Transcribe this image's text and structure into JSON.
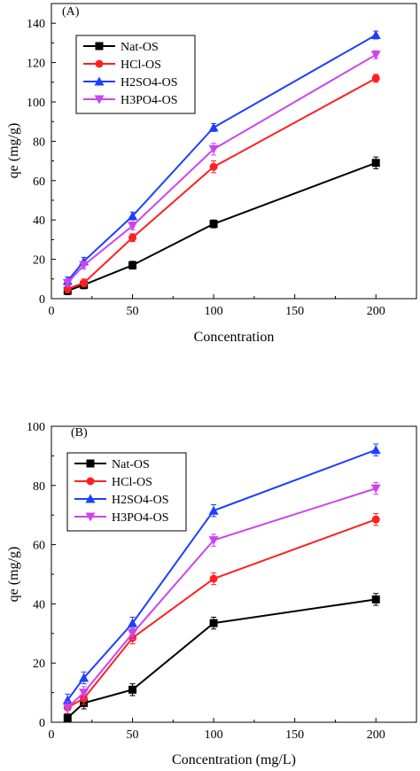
{
  "chart_data": [
    {
      "type": "line",
      "panel_label": "(A)",
      "xlabel": "Concentration",
      "ylabel": "qe (mg/g)",
      "xlim": [
        0,
        225
      ],
      "ylim": [
        0,
        150
      ],
      "x_ticks": [
        0,
        50,
        100,
        150,
        200
      ],
      "x_tick_labels": [
        "0",
        "50",
        "100",
        "150",
        "200"
      ],
      "y_ticks": [
        0,
        20,
        40,
        60,
        80,
        100,
        120,
        140
      ],
      "y_tick_labels": [
        "0",
        "20",
        "40",
        "60",
        "80",
        "100",
        "120",
        "140"
      ],
      "legend_position": "top-left",
      "x": [
        10,
        20,
        50,
        100,
        200
      ],
      "series": [
        {
          "name": "Nat-OS",
          "color": "#000000",
          "marker": "square",
          "values": [
            4,
            7,
            17,
            38,
            69
          ],
          "errors": [
            2,
            2,
            2,
            2,
            3
          ]
        },
        {
          "name": "HCl-OS",
          "color": "#ff2020",
          "marker": "circle",
          "values": [
            5,
            8,
            31,
            67,
            112
          ],
          "errors": [
            2,
            2,
            2,
            3,
            2
          ]
        },
        {
          "name": "H2SO4-OS",
          "color": "#1d3fff",
          "marker": "triangle-up",
          "values": [
            9,
            19,
            42,
            87,
            134
          ],
          "errors": [
            2,
            2,
            2,
            2,
            2
          ]
        },
        {
          "name": "H3PO4-OS",
          "color": "#cc44ee",
          "marker": "triangle-down",
          "values": [
            8,
            17,
            37,
            76,
            124
          ],
          "errors": [
            2,
            2,
            2,
            3,
            2
          ]
        }
      ]
    },
    {
      "type": "line",
      "panel_label": "(B)",
      "xlabel": "Concentration (mg/L)",
      "ylabel": "qe (mg/g)",
      "xlim": [
        0,
        225
      ],
      "ylim": [
        0,
        100
      ],
      "x_ticks": [
        0,
        50,
        100,
        150,
        200
      ],
      "x_tick_labels": [
        "0",
        "50",
        "100",
        "150",
        "200"
      ],
      "y_ticks": [
        0,
        20,
        40,
        60,
        80,
        100
      ],
      "y_tick_labels": [
        "0",
        "20",
        "40",
        "60",
        "80",
        "100"
      ],
      "legend_position": "top-left",
      "x": [
        10,
        20,
        50,
        100,
        200
      ],
      "series": [
        {
          "name": "Nat-OS",
          "color": "#000000",
          "marker": "square",
          "values": [
            1.5,
            6.5,
            11,
            33.5,
            41.5
          ],
          "errors": [
            1.5,
            2,
            2,
            2,
            2
          ]
        },
        {
          "name": "HCl-OS",
          "color": "#ff2020",
          "marker": "circle",
          "values": [
            5,
            8,
            28.5,
            48.5,
            68.5
          ],
          "errors": [
            2,
            2,
            2,
            2,
            2
          ]
        },
        {
          "name": "H2SO4-OS",
          "color": "#1d3fff",
          "marker": "triangle-up",
          "values": [
            7.5,
            15,
            33.5,
            71.5,
            92
          ],
          "errors": [
            2,
            2,
            2,
            2,
            2
          ]
        },
        {
          "name": "H3PO4-OS",
          "color": "#cc44ee",
          "marker": "triangle-down",
          "values": [
            5,
            10,
            30,
            61.5,
            79
          ],
          "errors": [
            2,
            2,
            2,
            2,
            2
          ]
        }
      ]
    }
  ]
}
